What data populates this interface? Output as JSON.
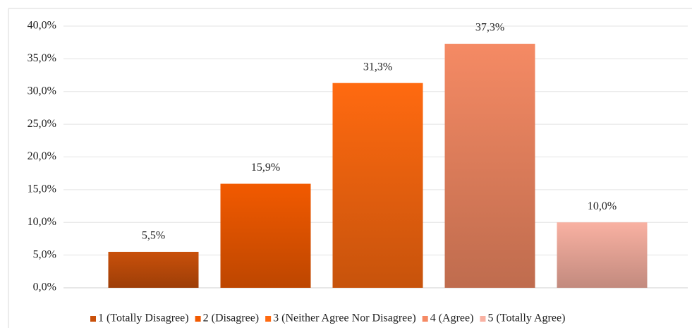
{
  "chart_data": {
    "type": "bar",
    "categories": [
      "1 (Totally Disagree)",
      "2 (Disagree)",
      "3 (Neither Agree Nor Disagree)",
      "4 (Agree)",
      "5 (Totally Agree)"
    ],
    "values": [
      5.5,
      15.9,
      31.3,
      37.3,
      10.0
    ],
    "value_labels": [
      "5,5%",
      "15,9%",
      "31,3%",
      "37,3%",
      "10,0%"
    ],
    "colors": [
      "#c9500a",
      "#f25a00",
      "#ff6a10",
      "#f58a64",
      "#f9b1a2"
    ],
    "ylim": [
      0,
      40
    ],
    "yticks": [
      {
        "value": 0,
        "label": "0,0%"
      },
      {
        "value": 5,
        "label": "5,0%"
      },
      {
        "value": 10,
        "label": "10,0%"
      },
      {
        "value": 15,
        "label": "15,0%"
      },
      {
        "value": 20,
        "label": "20,0%"
      },
      {
        "value": 25,
        "label": "25,0%"
      },
      {
        "value": 30,
        "label": "30,0%"
      },
      {
        "value": 35,
        "label": "35,0%"
      },
      {
        "value": 40,
        "label": "40,0%"
      }
    ],
    "grid": true,
    "legend": "bottom"
  }
}
